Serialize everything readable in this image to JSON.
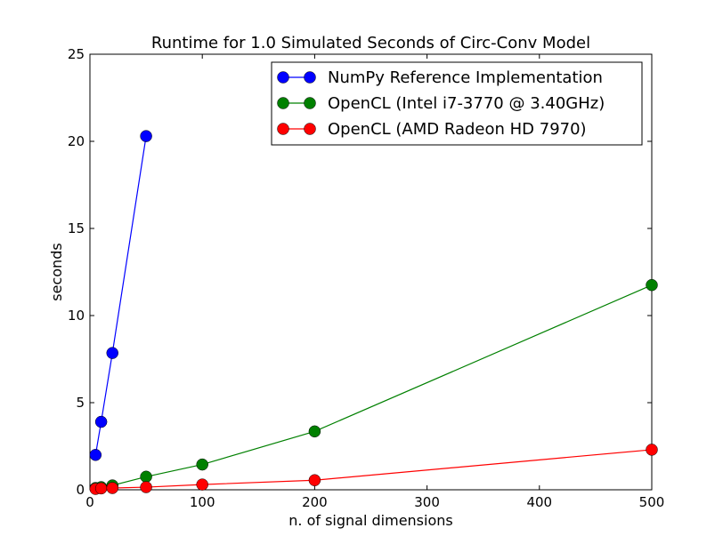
{
  "chart_data": {
    "type": "line",
    "title": "Runtime for 1.0 Simulated Seconds of Circ-Conv Model",
    "xlabel": "n. of signal dimensions",
    "ylabel": "seconds",
    "xlim": [
      0,
      500
    ],
    "ylim": [
      0,
      25
    ],
    "xticks": [
      0,
      100,
      200,
      300,
      400,
      500
    ],
    "yticks": [
      0,
      5,
      10,
      15,
      20,
      25
    ],
    "grid": false,
    "legend_position": "top-right",
    "series": [
      {
        "name": "NumPy Reference Implementation",
        "color": "#0000ff",
        "x": [
          5,
          10,
          20,
          50
        ],
        "y": [
          2.0,
          3.9,
          7.85,
          20.3
        ]
      },
      {
        "name": "OpenCL (Intel i7-3770 @ 3.40GHz)",
        "color": "#008000",
        "x": [
          5,
          10,
          20,
          50,
          100,
          200,
          500
        ],
        "y": [
          0.1,
          0.15,
          0.25,
          0.75,
          1.45,
          3.35,
          11.75
        ]
      },
      {
        "name": "OpenCL (AMD Radeon HD 7970)",
        "color": "#ff0000",
        "x": [
          5,
          10,
          20,
          50,
          100,
          200,
          500
        ],
        "y": [
          0.05,
          0.08,
          0.1,
          0.15,
          0.3,
          0.55,
          2.3
        ]
      }
    ]
  }
}
